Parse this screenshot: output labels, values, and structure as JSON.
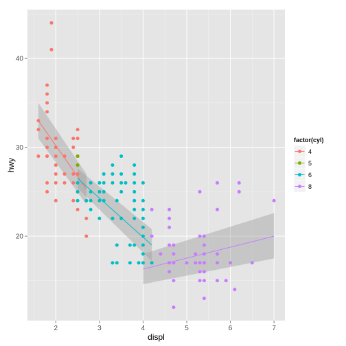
{
  "chart_data": {
    "type": "scatter",
    "xlabel": "displ",
    "ylabel": "hwy",
    "xlim": [
      1.35,
      7.25
    ],
    "ylim": [
      10.5,
      45.5
    ],
    "x_ticks": [
      2,
      3,
      4,
      5,
      6,
      7
    ],
    "y_ticks": [
      20,
      30,
      40
    ],
    "x_tick_labels": [
      "2",
      "3",
      "4",
      "5",
      "6",
      "7"
    ],
    "y_tick_labels": [
      "20",
      "30",
      "40"
    ],
    "grid": true,
    "legend": {
      "title": "factor(cyl)",
      "position": "right"
    },
    "series": [
      {
        "name": "4",
        "color": "#F8766D",
        "points": [
          [
            1.6,
            33
          ],
          [
            1.6,
            32
          ],
          [
            1.6,
            29
          ],
          [
            1.8,
            29
          ],
          [
            1.8,
            29
          ],
          [
            1.8,
            36
          ],
          [
            1.8,
            37
          ],
          [
            1.8,
            35
          ],
          [
            1.8,
            34
          ],
          [
            1.8,
            31
          ],
          [
            1.8,
            30
          ],
          [
            1.8,
            26
          ],
          [
            1.8,
            25
          ],
          [
            1.9,
            44
          ],
          [
            1.9,
            41
          ],
          [
            2.0,
            31
          ],
          [
            2.0,
            30
          ],
          [
            2.0,
            29
          ],
          [
            2.0,
            28
          ],
          [
            2.0,
            27
          ],
          [
            2.0,
            26
          ],
          [
            2.0,
            24
          ],
          [
            2.0,
            28
          ],
          [
            2.2,
            29
          ],
          [
            2.2,
            27
          ],
          [
            2.2,
            26
          ],
          [
            2.4,
            31
          ],
          [
            2.4,
            30
          ],
          [
            2.4,
            27
          ],
          [
            2.4,
            26
          ],
          [
            2.4,
            24
          ],
          [
            2.5,
            32
          ],
          [
            2.5,
            31
          ],
          [
            2.5,
            27
          ],
          [
            2.5,
            25
          ],
          [
            2.5,
            23
          ],
          [
            2.5,
            29
          ],
          [
            2.7,
            20
          ],
          [
            2.7,
            22
          ],
          [
            2.7,
            24
          ]
        ],
        "smooth": {
          "x": [
            1.6,
            2.7
          ],
          "y": [
            33.0,
            25.3
          ],
          "upper": [
            35.0,
            27.0
          ],
          "lower": [
            31.0,
            23.6
          ]
        }
      },
      {
        "name": "5",
        "color": "#7CAE00",
        "points": [
          [
            2.5,
            29
          ],
          [
            2.5,
            29
          ],
          [
            2.5,
            28
          ],
          [
            2.5,
            28
          ]
        ],
        "smooth": null
      },
      {
        "name": "6",
        "color": "#00BFC4",
        "points": [
          [
            2.5,
            26
          ],
          [
            2.5,
            25
          ],
          [
            2.5,
            24
          ],
          [
            2.7,
            24
          ],
          [
            2.8,
            26
          ],
          [
            2.8,
            25
          ],
          [
            2.8,
            24
          ],
          [
            2.8,
            23
          ],
          [
            3.0,
            26
          ],
          [
            3.0,
            25
          ],
          [
            3.0,
            24
          ],
          [
            3.0,
            22
          ],
          [
            3.1,
            27
          ],
          [
            3.1,
            26
          ],
          [
            3.1,
            25
          ],
          [
            3.1,
            24
          ],
          [
            3.3,
            28
          ],
          [
            3.3,
            27
          ],
          [
            3.3,
            26
          ],
          [
            3.3,
            22
          ],
          [
            3.3,
            17
          ],
          [
            3.4,
            24
          ],
          [
            3.4,
            19
          ],
          [
            3.4,
            17
          ],
          [
            3.5,
            29
          ],
          [
            3.5,
            27
          ],
          [
            3.5,
            26
          ],
          [
            3.5,
            25
          ],
          [
            3.5,
            22
          ],
          [
            3.6,
            26
          ],
          [
            3.7,
            19
          ],
          [
            3.7,
            17
          ],
          [
            3.8,
            28
          ],
          [
            3.8,
            27
          ],
          [
            3.8,
            26
          ],
          [
            3.8,
            25
          ],
          [
            3.8,
            24
          ],
          [
            3.8,
            23
          ],
          [
            3.8,
            22
          ],
          [
            3.8,
            19
          ],
          [
            3.9,
            17
          ],
          [
            4.0,
            26
          ],
          [
            4.0,
            24
          ],
          [
            4.0,
            23
          ],
          [
            4.0,
            22
          ],
          [
            4.0,
            21
          ],
          [
            4.0,
            20
          ],
          [
            4.0,
            19
          ],
          [
            4.0,
            18
          ],
          [
            4.0,
            17
          ],
          [
            4.2,
            17
          ]
        ],
        "smooth": {
          "x": [
            2.5,
            4.2
          ],
          "y": [
            26.5,
            19.0
          ],
          "upper": [
            27.6,
            20.8
          ],
          "lower": [
            25.4,
            17.2
          ]
        }
      },
      {
        "name": "8",
        "color": "#C77CFF",
        "points": [
          [
            4.2,
            23
          ],
          [
            4.2,
            20
          ],
          [
            4.4,
            18
          ],
          [
            4.6,
            23
          ],
          [
            4.6,
            22
          ],
          [
            4.6,
            21
          ],
          [
            4.6,
            19
          ],
          [
            4.6,
            17
          ],
          [
            4.6,
            16
          ],
          [
            4.7,
            19
          ],
          [
            4.7,
            17
          ],
          [
            4.7,
            15
          ],
          [
            4.7,
            12
          ],
          [
            4.7,
            18
          ],
          [
            5.0,
            17
          ],
          [
            5.2,
            18
          ],
          [
            5.2,
            17
          ],
          [
            5.3,
            25
          ],
          [
            5.3,
            20
          ],
          [
            5.3,
            17
          ],
          [
            5.3,
            16
          ],
          [
            5.3,
            15
          ],
          [
            5.4,
            20
          ],
          [
            5.4,
            19
          ],
          [
            5.4,
            18
          ],
          [
            5.4,
            17
          ],
          [
            5.4,
            16
          ],
          [
            5.4,
            15
          ],
          [
            5.4,
            13
          ],
          [
            5.7,
            26
          ],
          [
            5.7,
            23
          ],
          [
            5.7,
            18
          ],
          [
            5.7,
            17
          ],
          [
            5.7,
            15
          ],
          [
            5.9,
            15
          ],
          [
            6.0,
            17
          ],
          [
            6.1,
            14
          ],
          [
            6.2,
            26
          ],
          [
            6.2,
            25
          ],
          [
            6.5,
            17
          ],
          [
            7.0,
            24
          ]
        ],
        "smooth": {
          "x": [
            4.0,
            7.0
          ],
          "y": [
            16.3,
            20.0
          ],
          "upper": [
            18.0,
            22.6
          ],
          "lower": [
            14.6,
            17.5
          ]
        }
      }
    ]
  }
}
